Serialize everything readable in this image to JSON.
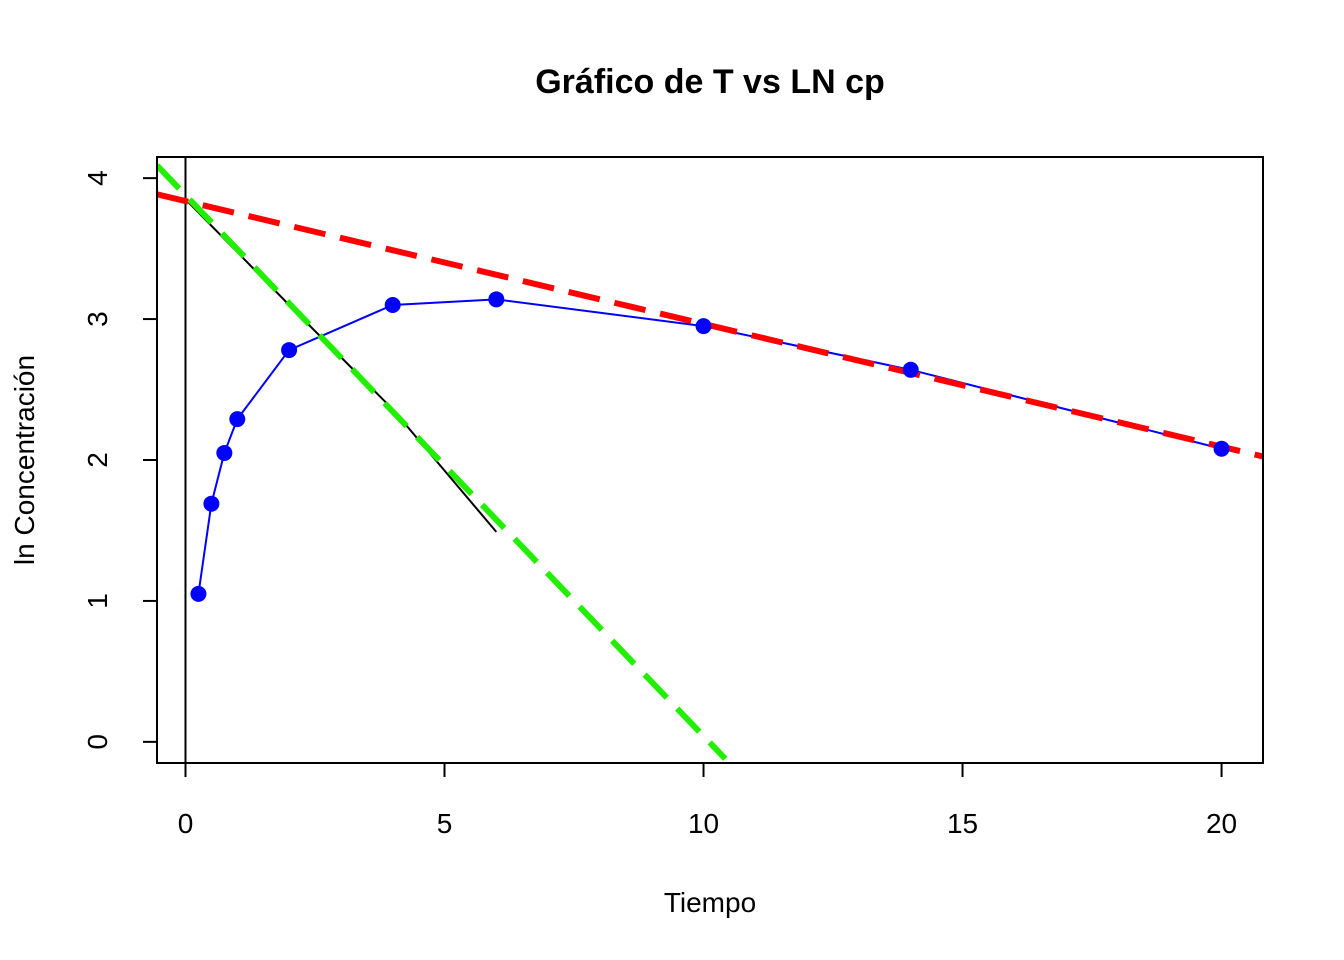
{
  "chart_data": {
    "type": "line",
    "title": "Gráfico de T vs LN cp",
    "xlabel": "Tiempo",
    "ylabel": "ln Concentración",
    "xlim": [
      -0.55,
      20.8
    ],
    "ylim": [
      -0.15,
      4.15
    ],
    "xticks": [
      0,
      5,
      10,
      15,
      20
    ],
    "yticks": [
      0,
      1,
      2,
      3,
      4
    ],
    "grid": false,
    "legend": "none",
    "series": [
      {
        "style": "points-and-line",
        "color": "#0000ff",
        "x": [
          0.25,
          0.5,
          0.75,
          1,
          2,
          4,
          6,
          10,
          14,
          20
        ],
        "y": [
          1.05,
          1.69,
          2.05,
          2.29,
          2.78,
          3.1,
          3.14,
          2.95,
          2.64,
          2.08
        ]
      },
      {
        "style": "line",
        "color": "#000000",
        "x": [
          0,
          2,
          4,
          6
        ],
        "y": [
          3.85,
          3.1,
          2.36,
          1.49
        ]
      },
      {
        "style": "dashed-line",
        "color": "#ff0000",
        "x": [
          -0.55,
          20.8
        ],
        "y": [
          3.885,
          2.025
        ]
      },
      {
        "style": "dashed-line",
        "color": "#22ee00",
        "x": [
          -0.55,
          10.42
        ],
        "y": [
          4.09,
          -0.12
        ]
      }
    ],
    "reference_lines": [
      {
        "orientation": "vertical",
        "x": 0,
        "color": "#000000"
      }
    ]
  }
}
